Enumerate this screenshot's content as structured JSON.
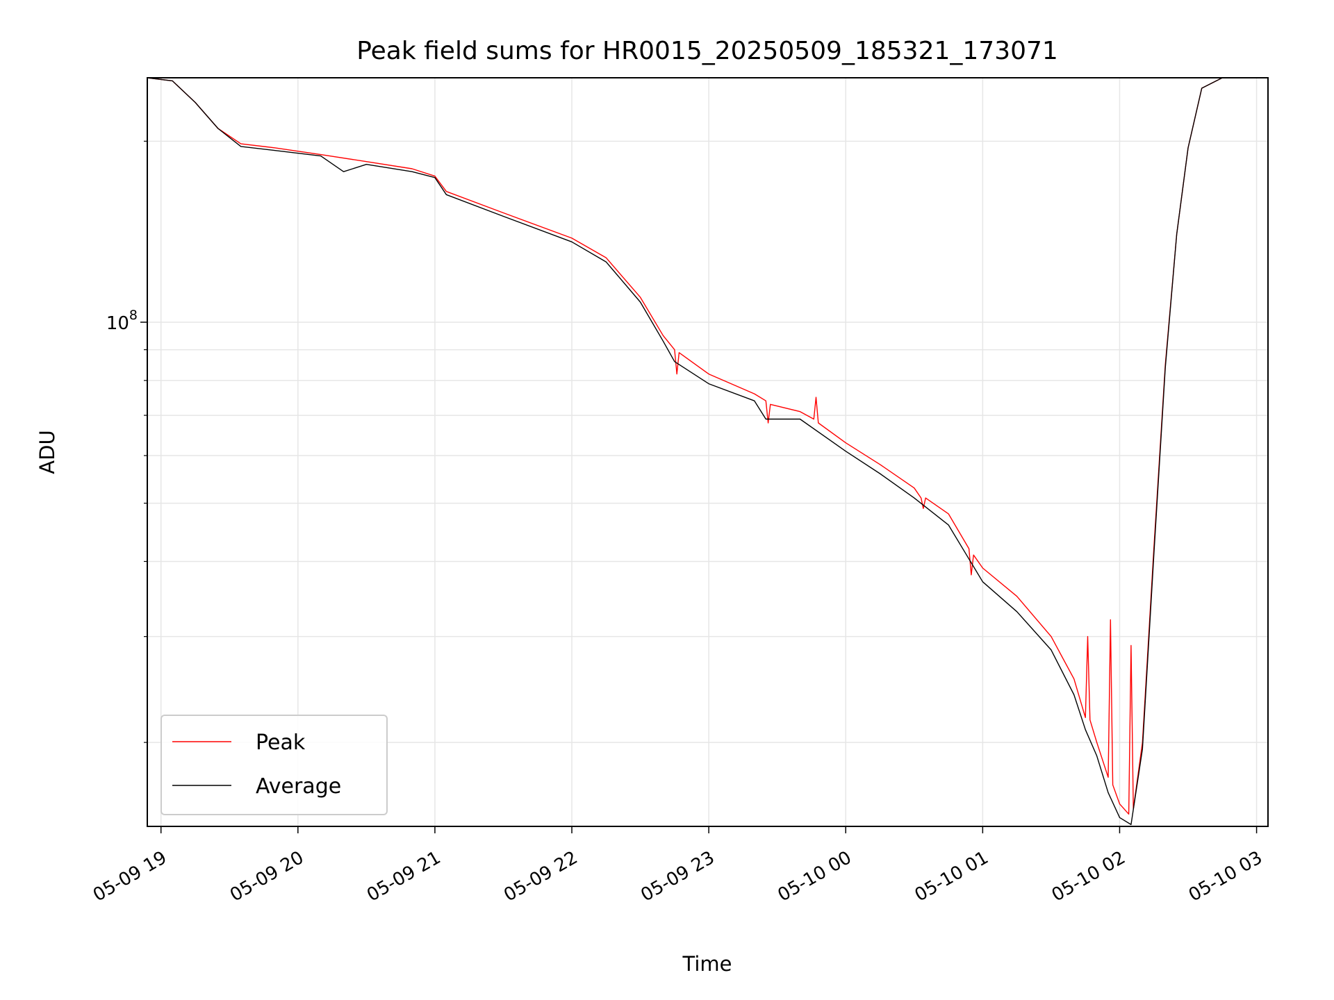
{
  "chart_data": {
    "type": "line",
    "title": "Peak field sums for HR0015_20250509_185321_173071",
    "xlabel": "Time",
    "ylabel": "ADU",
    "yscale": "log",
    "ylim": [
      14500000,
      255000000
    ],
    "xlim": [
      "2025-05-09 18:54",
      "2025-05-10 03:05"
    ],
    "x_ticks": [
      "05-09 19",
      "05-09 20",
      "05-09 21",
      "05-09 22",
      "05-09 23",
      "05-10 00",
      "05-10 01",
      "05-10 02",
      "05-10 03"
    ],
    "y_major_tick_label": {
      "base": "10",
      "exponent": "8"
    },
    "grid": true,
    "legend_position": "lower-left",
    "colors": {
      "Peak": "#ff0000",
      "Average": "#000000"
    },
    "series": [
      {
        "name": "Peak",
        "x": [
          "2025-05-09 18:54",
          "2025-05-09 19:05",
          "2025-05-09 19:15",
          "2025-05-09 19:25",
          "2025-05-09 19:35",
          "2025-05-09 19:50",
          "2025-05-09 20:10",
          "2025-05-09 20:30",
          "2025-05-09 20:50",
          "2025-05-09 21:00",
          "2025-05-09 21:05",
          "2025-05-09 21:30",
          "2025-05-09 22:00",
          "2025-05-09 22:15",
          "2025-05-09 22:30",
          "2025-05-09 22:40",
          "2025-05-09 22:45",
          "2025-05-09 22:46",
          "2025-05-09 22:47",
          "2025-05-09 23:00",
          "2025-05-09 23:20",
          "2025-05-09 23:25",
          "2025-05-09 23:26",
          "2025-05-09 23:27",
          "2025-05-09 23:40",
          "2025-05-09 23:46",
          "2025-05-09 23:47",
          "2025-05-09 23:48",
          "2025-05-10 00:00",
          "2025-05-10 00:15",
          "2025-05-10 00:30",
          "2025-05-10 00:33",
          "2025-05-10 00:34",
          "2025-05-10 00:35",
          "2025-05-10 00:45",
          "2025-05-10 00:54",
          "2025-05-10 00:55",
          "2025-05-10 00:56",
          "2025-05-10 01:00",
          "2025-05-10 01:15",
          "2025-05-10 01:30",
          "2025-05-10 01:40",
          "2025-05-10 01:45",
          "2025-05-10 01:46",
          "2025-05-10 01:47",
          "2025-05-10 01:50",
          "2025-05-10 01:55",
          "2025-05-10 01:56",
          "2025-05-10 01:57",
          "2025-05-10 02:00",
          "2025-05-10 02:04",
          "2025-05-10 02:05",
          "2025-05-10 02:06",
          "2025-05-10 02:10",
          "2025-05-10 02:15",
          "2025-05-10 02:20",
          "2025-05-10 02:25",
          "2025-05-10 02:30",
          "2025-05-10 02:36",
          "2025-05-10 02:45",
          "2025-05-10 03:05"
        ],
        "y": [
          255000000,
          252000000,
          232000000,
          210000000,
          198000000,
          195000000,
          190000000,
          185000000,
          180000000,
          175000000,
          165000000,
          152000000,
          138000000,
          128000000,
          110000000,
          95000000,
          90000000,
          82000000,
          89000000,
          82000000,
          76000000,
          74000000,
          68000000,
          73000000,
          71000000,
          69000000,
          75000000,
          68000000,
          63000000,
          58000000,
          53000000,
          51000000,
          49000000,
          51000000,
          48000000,
          42000000,
          38000000,
          41000000,
          39000000,
          35000000,
          30000000,
          25500000,
          22000000,
          30000000,
          21800000,
          20000000,
          17500000,
          32000000,
          17000000,
          15800000,
          15200000,
          29000000,
          15500000,
          20000000,
          42000000,
          85000000,
          140000000,
          195000000,
          245000000,
          255000000,
          255000000
        ]
      },
      {
        "name": "Average",
        "x": [
          "2025-05-09 18:54",
          "2025-05-09 19:05",
          "2025-05-09 19:15",
          "2025-05-09 19:25",
          "2025-05-09 19:35",
          "2025-05-09 19:50",
          "2025-05-09 20:10",
          "2025-05-09 20:20",
          "2025-05-09 20:30",
          "2025-05-09 20:50",
          "2025-05-09 21:00",
          "2025-05-09 21:05",
          "2025-05-09 21:30",
          "2025-05-09 22:00",
          "2025-05-09 22:15",
          "2025-05-09 22:30",
          "2025-05-09 22:40",
          "2025-05-09 22:45",
          "2025-05-09 23:00",
          "2025-05-09 23:20",
          "2025-05-09 23:25",
          "2025-05-09 23:40",
          "2025-05-10 00:00",
          "2025-05-10 00:15",
          "2025-05-10 00:30",
          "2025-05-10 00:45",
          "2025-05-10 01:00",
          "2025-05-10 01:15",
          "2025-05-10 01:30",
          "2025-05-10 01:40",
          "2025-05-10 01:45",
          "2025-05-10 01:50",
          "2025-05-10 01:55",
          "2025-05-10 02:00",
          "2025-05-10 02:05",
          "2025-05-10 02:10",
          "2025-05-10 02:15",
          "2025-05-10 02:20",
          "2025-05-10 02:25",
          "2025-05-10 02:30",
          "2025-05-10 02:36",
          "2025-05-10 02:45",
          "2025-05-10 03:05"
        ],
        "y": [
          255000000,
          252000000,
          232000000,
          210000000,
          196000000,
          193000000,
          189000000,
          178000000,
          183000000,
          178000000,
          174000000,
          163000000,
          150000000,
          136000000,
          126000000,
          108000000,
          93000000,
          86000000,
          79000000,
          74000000,
          69000000,
          69000000,
          61000000,
          56000000,
          51000000,
          46000000,
          37000000,
          33000000,
          28500000,
          24000000,
          21000000,
          19000000,
          16500000,
          15000000,
          14600000,
          19500000,
          41000000,
          84000000,
          140000000,
          195000000,
          245000000,
          255000000,
          255000000
        ]
      }
    ]
  }
}
